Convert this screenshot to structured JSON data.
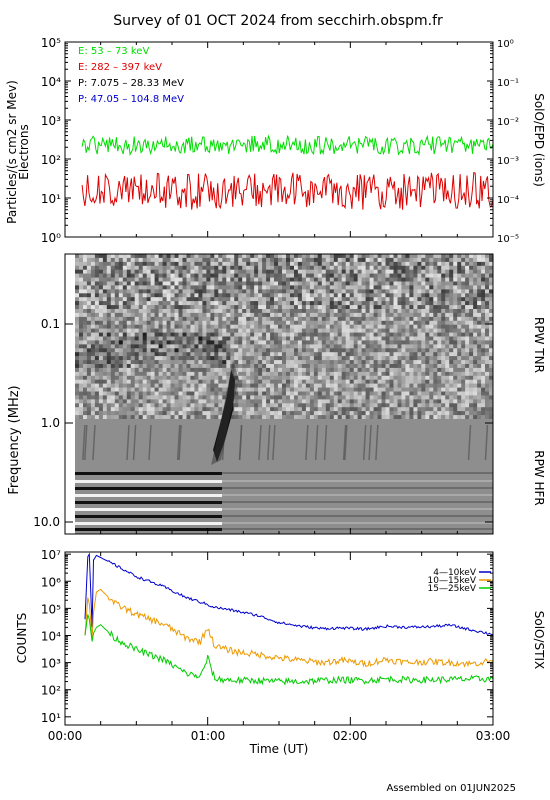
{
  "title": "Survey of 01 OCT 2024 from secchirh.obspm.fr",
  "footer": "Assembled on 01JUN2025",
  "chart_data": [
    {
      "type": "line",
      "name": "epd",
      "ylabel_left_1": "Particles/(s cm2 sr Mev)",
      "ylabel_left_2": "Electrons",
      "ylabel_right": "SolO/EPD (ions)",
      "ylim": [
        1,
        100000
      ],
      "ylim_right": [
        1e-05,
        1
      ],
      "yscale": "log",
      "yticks": [
        "10⁰",
        "10¹",
        "10²",
        "10³",
        "10⁴",
        "10⁵"
      ],
      "yticks_right": [
        "10⁻⁵",
        "10⁻⁴",
        "10⁻³",
        "10⁻²",
        "10⁻¹",
        "10⁰"
      ],
      "xlim_hours": [
        0,
        3
      ],
      "legend_placement": "top-left",
      "series": [
        {
          "name": "E: 53 – 73 keV",
          "color": "#00dd00",
          "approx_level": 230,
          "noise_range": [
            100,
            500
          ]
        },
        {
          "name": "E: 282 – 397 keV",
          "color": "#dd0000",
          "approx_level": 15,
          "noise_range": [
            5,
            45
          ]
        },
        {
          "name": "P: 7.075 – 28.33 MeV",
          "color": "#000000",
          "values": []
        },
        {
          "name": "P: 47.05 – 104.8 MeV",
          "color": "#0000cc",
          "values": []
        }
      ]
    },
    {
      "type": "heatmap",
      "name": "rpw",
      "ylabel": "Frequency (MHz)",
      "yscale": "log",
      "ylim": [
        0.03,
        13
      ],
      "yticks": [
        "0.1",
        "1.0",
        "10.0"
      ],
      "labels_right": [
        "RPW TNR",
        "RPW HFR"
      ],
      "boundary_mhz": 1.0,
      "features": [
        {
          "kind": "type III burst",
          "time_hours": 1.08,
          "freq_range_mhz": [
            0.25,
            2.0
          ]
        },
        {
          "kind": "low-frequency activity",
          "time_hours": [
            0.0,
            0.6
          ],
          "freq_range_mhz": [
            0.12,
            0.2
          ]
        }
      ]
    },
    {
      "type": "line",
      "name": "stix",
      "ylabel": "COUNTS",
      "ylabel_right": "SolO/STIX",
      "yscale": "log",
      "ylim": [
        5,
        12000000
      ],
      "yticks": [
        "10¹",
        "10²",
        "10³",
        "10⁴",
        "10⁵",
        "10⁶",
        "10⁷"
      ],
      "legend_placement": "top-right",
      "series": [
        {
          "name": "4—10keV",
          "color": "#0000cc",
          "x_hours": [
            0.14,
            0.16,
            0.17,
            0.19,
            0.2,
            0.22,
            0.25,
            0.35,
            0.5,
            0.7,
            0.85,
            0.95,
            1.05,
            1.2,
            1.35,
            1.5,
            1.65,
            1.8,
            1.95,
            2.1,
            2.25,
            2.4,
            2.55,
            2.7,
            2.85,
            3.0
          ],
          "values": [
            40000,
            8000000,
            10000000,
            20000,
            6000000,
            9000000,
            7500000,
            4000000,
            1500000,
            600000,
            250000,
            170000,
            110000,
            80000,
            55000,
            30000,
            22000,
            18000,
            19000,
            17000,
            22000,
            20000,
            21000,
            24000,
            16000,
            11000
          ]
        },
        {
          "name": "10—15keV",
          "color": "#ee9900",
          "x_hours": [
            0.14,
            0.16,
            0.17,
            0.19,
            0.2,
            0.22,
            0.25,
            0.35,
            0.5,
            0.7,
            0.85,
            0.95,
            1.0,
            1.05,
            1.2,
            1.35,
            1.5,
            1.65,
            1.8,
            1.95,
            2.1,
            2.25,
            2.4,
            2.55,
            2.7,
            2.85,
            3.0
          ],
          "values": [
            10000,
            250000,
            150000,
            8000,
            70000,
            400000,
            500000,
            150000,
            60000,
            25000,
            8000,
            6000,
            20000,
            4000,
            2500,
            2000,
            1500,
            1200,
            1000,
            1200,
            900,
            1300,
            1000,
            1100,
            1000,
            900,
            1200
          ]
        },
        {
          "name": "15—25keV",
          "color": "#00cc00",
          "x_hours": [
            0.14,
            0.16,
            0.17,
            0.19,
            0.2,
            0.22,
            0.25,
            0.35,
            0.5,
            0.7,
            0.85,
            0.95,
            1.0,
            1.05,
            1.2,
            1.35,
            1.5,
            1.65,
            1.8,
            1.95,
            2.1,
            2.25,
            2.4,
            2.55,
            2.7,
            2.85,
            3.0
          ],
          "values": [
            10000,
            60000,
            40000,
            6000,
            12000,
            20000,
            25000,
            8000,
            3000,
            1200,
            400,
            300,
            1500,
            250,
            220,
            220,
            200,
            200,
            220,
            230,
            220,
            250,
            230,
            230,
            240,
            250,
            250
          ]
        }
      ]
    }
  ],
  "x_axis": {
    "label": "Time (UT)",
    "ticks": [
      "00:00",
      "01:00",
      "02:00",
      "03:00"
    ]
  }
}
